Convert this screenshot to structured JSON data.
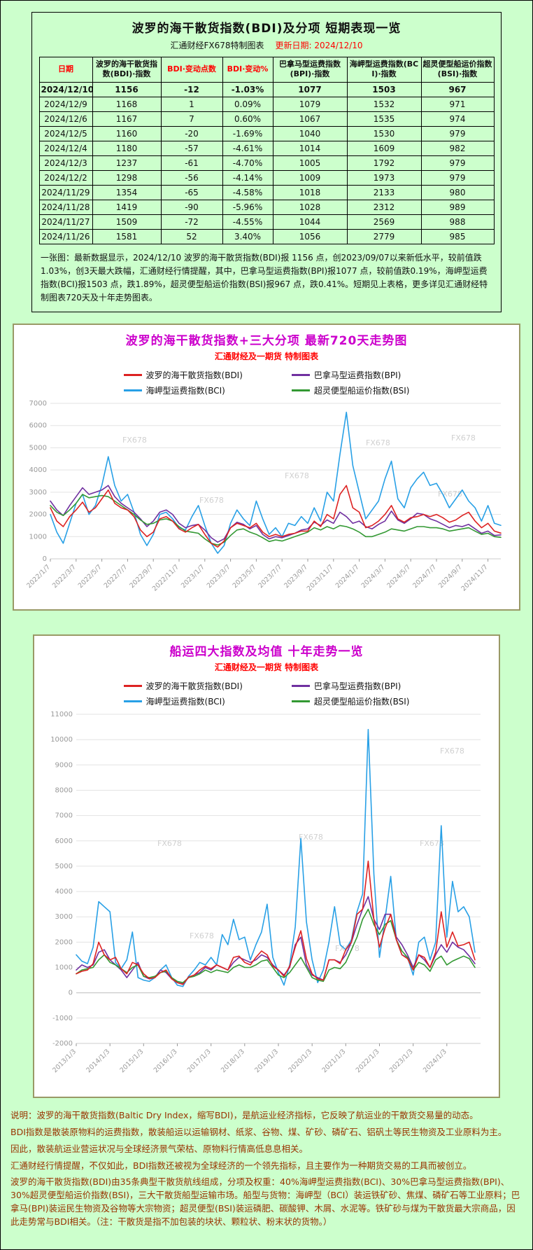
{
  "colors": {
    "page_bg": "#ccffcc",
    "panel_border": "#999966",
    "title_magenta": "#cc00cc",
    "accent_red": "#ff0000",
    "footer_text": "#993300"
  },
  "table_section": {
    "title": "波罗的海干散货指数(BDI)及分项 短期表现一览",
    "subtitle_left": "汇通财经FX678特制图表",
    "subtitle_right": "更新日期: 2024/12/10",
    "columns": [
      {
        "label": "日期",
        "emphasis": "red"
      },
      {
        "label": "波罗的海干散货指数(BDI)·指数",
        "emphasis": "normal"
      },
      {
        "label": "BDI·变动点数",
        "emphasis": "red"
      },
      {
        "label": "BDI·变动%",
        "emphasis": "red"
      },
      {
        "label": "巴拿马型运费指数(BPI)·指数",
        "emphasis": "normal"
      },
      {
        "label": "海岬型运费指数(BCI)·指数",
        "emphasis": "normal"
      },
      {
        "label": "超灵便型船运价指数(BSI)·指数",
        "emphasis": "normal"
      }
    ],
    "rows": [
      [
        "2024/12/10",
        "1156",
        "-12",
        "-1.03%",
        "1077",
        "1503",
        "967"
      ],
      [
        "2024/12/9",
        "1168",
        "1",
        "0.09%",
        "1079",
        "1532",
        "971"
      ],
      [
        "2024/12/6",
        "1167",
        "7",
        "0.60%",
        "1067",
        "1535",
        "974"
      ],
      [
        "2024/12/5",
        "1160",
        "-20",
        "-1.69%",
        "1040",
        "1530",
        "979"
      ],
      [
        "2024/12/4",
        "1180",
        "-57",
        "-4.61%",
        "1014",
        "1609",
        "982"
      ],
      [
        "2024/12/3",
        "1237",
        "-61",
        "-4.70%",
        "1005",
        "1792",
        "979"
      ],
      [
        "2024/12/2",
        "1298",
        "-56",
        "-4.14%",
        "1009",
        "1973",
        "979"
      ],
      [
        "2024/11/29",
        "1354",
        "-65",
        "-4.58%",
        "1018",
        "2133",
        "980"
      ],
      [
        "2024/11/28",
        "1419",
        "-90",
        "-5.96%",
        "1028",
        "2312",
        "989"
      ],
      [
        "2024/11/27",
        "1509",
        "-72",
        "-4.55%",
        "1044",
        "2569",
        "988"
      ],
      [
        "2024/11/26",
        "1581",
        "52",
        "3.40%",
        "1056",
        "2779",
        "985"
      ]
    ],
    "note": "一张图：最新数据显示，2024/12/10 波罗的海干散货指数(BDI)报 1156 点，创2023/09/07以来新低水平，较前值跌1.03%，创3天最大跌幅，汇通财经行情提醒，其中，巴拿马型运费指数(BPI)报1077 点，较前值跌0.19%，海岬型运费指数(BCI)报1503 点，跌1.89%，超灵便型船运价指数(BSI)报967 点，跌0.41%。短期见上表格，更多详见汇通财经特制图表720天及十年走势图表。"
  },
  "chart_data": [
    {
      "type": "line",
      "title": "波罗的海干散货指数+三大分项  最新720天走势图",
      "subtitle": "汇通财经及一期货 特制图表",
      "watermark": "FX678",
      "ylim": [
        0,
        7000
      ],
      "y_ticks": [
        0,
        1000,
        2000,
        3000,
        4000,
        5000,
        6000,
        7000
      ],
      "x_max": 35,
      "x_step": 0.5,
      "x_tick_positions": [
        0,
        2,
        4,
        6,
        8,
        10,
        12,
        14,
        16,
        18,
        20,
        22,
        24,
        26,
        28,
        30,
        32,
        34
      ],
      "x_tick_labels": [
        "2022/1/7",
        "2022/3/7",
        "2022/5/7",
        "2022/7/7",
        "2022/9/7",
        "2022/11/7",
        "2023/1/7",
        "2023/3/7",
        "2023/5/7",
        "2023/7/7",
        "2023/9/7",
        "2023/11/7",
        "2024/1/7",
        "2024/3/7",
        "2024/5/7",
        "2024/7/7",
        "2024/9/7",
        "2024/11/7"
      ],
      "series": [
        {
          "name": "波罗的海干散货指数(BDI)",
          "color": "#dd2222",
          "values": [
            2300,
            1700,
            1450,
            1900,
            2200,
            2550,
            2100,
            2300,
            2700,
            3100,
            2500,
            2300,
            2200,
            1900,
            1300,
            1000,
            1200,
            1800,
            1900,
            1700,
            1350,
            1200,
            1400,
            1550,
            1100,
            700,
            530,
            800,
            1400,
            1600,
            1500,
            1400,
            1600,
            1200,
            1000,
            1100,
            1000,
            1100,
            1150,
            1250,
            1250,
            1700,
            1450,
            2000,
            1800,
            2900,
            3300,
            2300,
            2100,
            1400,
            1500,
            1700,
            2000,
            2400,
            1800,
            1650,
            1850,
            1900,
            2000,
            1900,
            2000,
            1850,
            1650,
            1750,
            1950,
            2100,
            1700,
            1400,
            1600,
            1250,
            1156
          ]
        },
        {
          "name": "巴拿马型运费指数(BPI)",
          "color": "#7030a0",
          "values": [
            2600,
            2200,
            1950,
            2400,
            2800,
            3200,
            2900,
            3000,
            3100,
            3300,
            2800,
            2500,
            2300,
            2100,
            1800,
            1450,
            1700,
            2100,
            2200,
            2000,
            1600,
            1400,
            1500,
            1550,
            1300,
            950,
            750,
            900,
            1400,
            1650,
            1550,
            1350,
            1500,
            1100,
            900,
            1000,
            950,
            1050,
            1150,
            1300,
            1350,
            1650,
            1500,
            1750,
            1600,
            2100,
            1900,
            1600,
            1700,
            1450,
            1350,
            1550,
            1700,
            2150,
            1750,
            1600,
            1800,
            2050,
            2000,
            1800,
            1700,
            1550,
            1400,
            1500,
            1450,
            1550,
            1350,
            1150,
            1250,
            1050,
            1077
          ]
        },
        {
          "name": "海岬型运费指数(BCI)",
          "color": "#28a0e6",
          "values": [
            2000,
            1200,
            700,
            1600,
            2500,
            2900,
            2000,
            2400,
            3300,
            4600,
            3300,
            2600,
            2900,
            2100,
            1100,
            600,
            1100,
            2000,
            2100,
            1800,
            1400,
            1300,
            1900,
            2400,
            1500,
            700,
            250,
            600,
            1600,
            2200,
            1800,
            1500,
            2600,
            1800,
            1100,
            1400,
            1000,
            1600,
            1500,
            1900,
            1600,
            2300,
            1700,
            3000,
            2600,
            4700,
            6600,
            4200,
            3000,
            1800,
            2200,
            2600,
            3600,
            4400,
            2700,
            2300,
            3200,
            3600,
            3900,
            3300,
            3400,
            2900,
            2300,
            2700,
            3100,
            2600,
            2300,
            1700,
            2400,
            1600,
            1503
          ]
        },
        {
          "name": "超灵便型船运价指数(BSI)",
          "color": "#339933",
          "values": [
            2400,
            2100,
            1950,
            2200,
            2500,
            2900,
            2750,
            2800,
            2850,
            2800,
            2600,
            2400,
            2200,
            2000,
            1750,
            1550,
            1600,
            1750,
            1800,
            1700,
            1450,
            1250,
            1200,
            1150,
            900,
            700,
            620,
            750,
            1050,
            1300,
            1350,
            1200,
            1100,
            950,
            780,
            850,
            800,
            900,
            1000,
            1100,
            1200,
            1400,
            1300,
            1450,
            1350,
            1500,
            1450,
            1350,
            1200,
            1000,
            1000,
            1100,
            1200,
            1350,
            1300,
            1250,
            1350,
            1450,
            1450,
            1400,
            1400,
            1350,
            1250,
            1300,
            1350,
            1400,
            1250,
            1100,
            1150,
            1000,
            967
          ]
        }
      ]
    },
    {
      "type": "line",
      "title": "船运四大指数及均值 十年走势一览",
      "subtitle": "汇通财经及一期货 特制图表",
      "watermark": "FX678",
      "ylim": [
        -2000,
        11000
      ],
      "y_ticks": [
        -2000,
        -1000,
        0,
        1000,
        2000,
        3000,
        4000,
        5000,
        6000,
        7000,
        8000,
        9000,
        10000,
        11000
      ],
      "x_max": 144,
      "x_step": 2,
      "x_tick_positions": [
        0,
        12,
        24,
        36,
        48,
        60,
        72,
        84,
        96,
        108,
        120,
        132
      ],
      "x_tick_labels": [
        "2013/1/3",
        "2014/1/3",
        "2015/1/3",
        "2016/1/3",
        "2017/1/3",
        "2018/1/3",
        "2019/1/3",
        "2020/1/3",
        "2021/1/3",
        "2022/1/3",
        "2023/1/3",
        "2024/1/3"
      ],
      "series": [
        {
          "name": "波罗的海干散货指数(BDI)",
          "color": "#dd2222",
          "values": [
            750,
            850,
            900,
            1150,
            2000,
            1500,
            1300,
            1400,
            950,
            750,
            1200,
            1100,
            750,
            560,
            600,
            800,
            900,
            550,
            400,
            330,
            620,
            700,
            900,
            1050,
            950,
            1100,
            1000,
            900,
            1400,
            1450,
            1200,
            1100,
            1400,
            1650,
            1500,
            1050,
            900,
            650,
            1050,
            1800,
            2450,
            1350,
            750,
            550,
            500,
            1300,
            1300,
            1150,
            1700,
            2000,
            3100,
            3300,
            5200,
            2900,
            1800,
            2550,
            3100,
            2100,
            1500,
            1350,
            900,
            1500,
            1400,
            1000,
            1600,
            3200,
            1800,
            2400,
            1850,
            1900,
            2000,
            1300
          ]
        },
        {
          "name": "巴拿马型运费指数(BPI)",
          "color": "#7030a0",
          "values": [
            900,
            1100,
            1000,
            1100,
            1600,
            1700,
            1300,
            1100,
            900,
            600,
            900,
            1200,
            650,
            550,
            600,
            900,
            800,
            550,
            400,
            350,
            600,
            700,
            800,
            1000,
            900,
            1100,
            1000,
            900,
            1200,
            1400,
            1300,
            1200,
            1300,
            1500,
            1400,
            1100,
            900,
            700,
            1000,
            1900,
            2200,
            1100,
            700,
            600,
            500,
            1300,
            1300,
            1200,
            1500,
            2000,
            2700,
            3300,
            3800,
            2900,
            2500,
            3100,
            3100,
            2200,
            1900,
            1500,
            1000,
            1500,
            1300,
            1000,
            1500,
            1900,
            1600,
            2000,
            1800,
            1700,
            1450,
            1150
          ]
        },
        {
          "name": "海岬型运费指数(BCI)",
          "color": "#28a0e6",
          "values": [
            1500,
            1250,
            1150,
            1800,
            3600,
            3400,
            3200,
            1200,
            950,
            1300,
            2400,
            600,
            500,
            450,
            600,
            900,
            1100,
            600,
            300,
            250,
            650,
            900,
            1200,
            1100,
            1400,
            1100,
            2300,
            1900,
            2900,
            2100,
            2200,
            1300,
            1900,
            2400,
            3500,
            1400,
            800,
            300,
            1100,
            2600,
            6100,
            2800,
            1300,
            400,
            900,
            2000,
            3400,
            1900,
            1700,
            2100,
            3200,
            3900,
            10400,
            4700,
            1400,
            2900,
            4600,
            2100,
            1500,
            1400,
            700,
            2000,
            2200,
            1300,
            2000,
            6600,
            2200,
            4400,
            3200,
            3400,
            3000,
            1600
          ]
        },
        {
          "name": "超灵便型船运价指数(BSI)",
          "color": "#339933",
          "values": [
            750,
            900,
            950,
            1000,
            1300,
            1500,
            1200,
            1100,
            950,
            800,
            1000,
            1100,
            650,
            600,
            650,
            800,
            850,
            600,
            450,
            400,
            600,
            650,
            750,
            900,
            800,
            900,
            850,
            800,
            1000,
            1100,
            1000,
            1000,
            1100,
            1250,
            1300,
            1000,
            700,
            600,
            800,
            1100,
            1400,
            1000,
            600,
            500,
            450,
            900,
            1000,
            950,
            1200,
            1700,
            2200,
            2900,
            3300,
            2700,
            2300,
            2700,
            2850,
            2100,
            1650,
            1400,
            900,
            1200,
            1100,
            850,
            1300,
            1450,
            1100,
            1250,
            1350,
            1450,
            1350,
            1000
          ]
        }
      ]
    }
  ],
  "footer": {
    "lines": [
      "说明：波罗的海干散货指数(Baltic Dry Index，缩写BDI)，是航运业经济指标，它反映了航运业的干散货交易量的动态。",
      "BDI指数是散装原物料的运费指数，散装船运以运输钢材、纸浆、谷物、煤、矿砂、磷矿石、铝矾土等民生物资及工业原料为主。",
      "因此，散装航运业营运状况与全球经济景气荣枯、原物料行情高低息息相关。",
      "汇通财经行情提醒，不仅如此，BDI指数还被视为全球经济的一个领先指标，且主要作为一种期货交易的工具而被创立。",
      "波罗的海干散货指数(BDI)由35条典型干散货航线组成，分项及权重：40%海岬型运费指数(BCI)、30%巴拿马型运费指数(BPI)、30%超灵便型船运价指数(BSI)，三大干散货船型运输市场。船型与货物：海岬型（BCI）装运铁矿砂、焦煤、磷矿石等工业原料；巴拿马(BPI)装运民生物资及谷物等大宗物资；超灵便型(BSI)装运磷肥、碳酸钾、木屑、水泥等。铁矿砂与煤为干散货最大宗商品，因此走势常与BDI相关。（注：干散货是指不加包装的块状、颗粒状、粉末状的货物。）"
    ]
  }
}
